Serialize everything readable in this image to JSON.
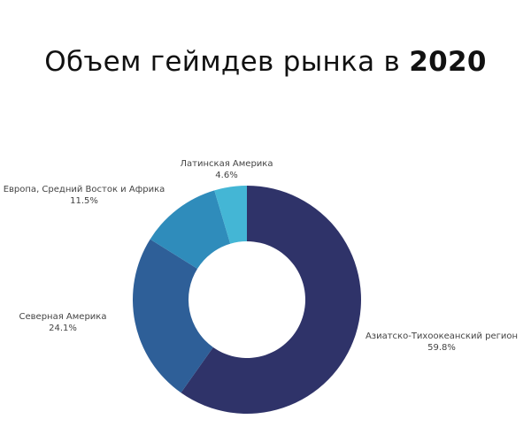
{
  "chart_data": {
    "type": "pie",
    "donut": true,
    "title": "Объем геймдев рынка в",
    "title_bold": "2020",
    "slices": [
      {
        "label": "Азиатско-Тихоокеанский регион",
        "value": 59.8,
        "value_label": "59.8%",
        "color": "#2f3369"
      },
      {
        "label": "Северная Америка",
        "value": 24.1,
        "value_label": "24.1%",
        "color": "#2e5f98"
      },
      {
        "label": "Европа, Средний Восток и Африка",
        "value": 11.5,
        "value_label": "11.5%",
        "color": "#2f8cbb"
      },
      {
        "label": "Латинская Америка",
        "value": 4.6,
        "value_label": "4.6%",
        "color": "#44b6d5"
      }
    ]
  }
}
